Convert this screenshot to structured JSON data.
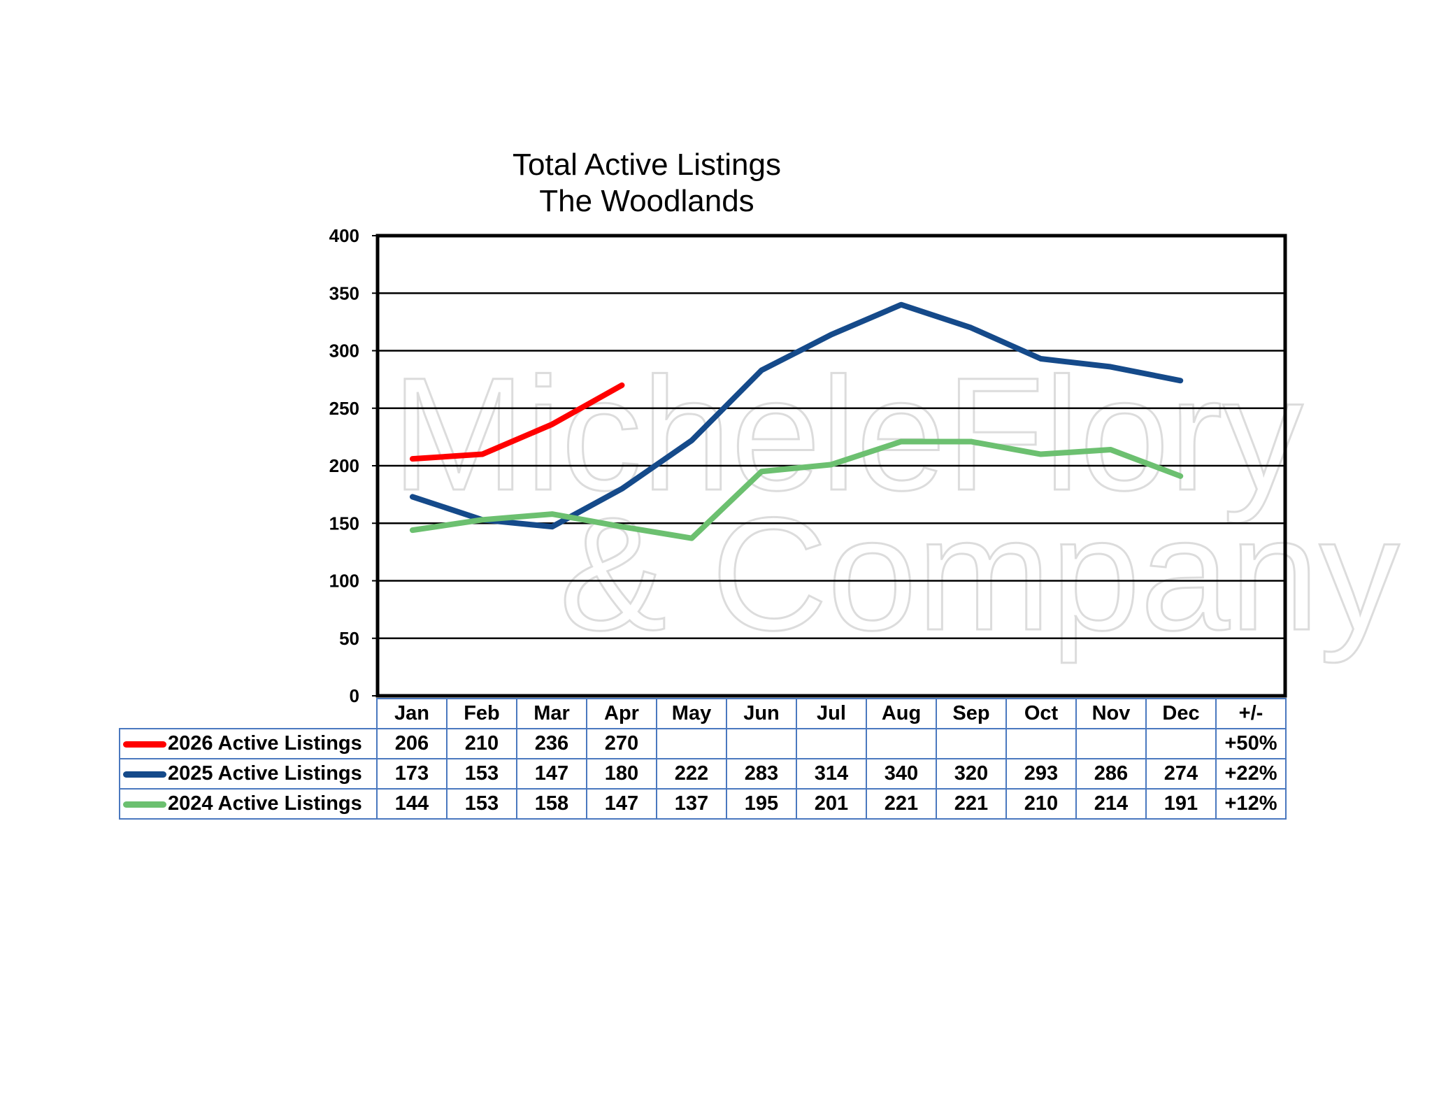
{
  "chart_data": {
    "type": "line",
    "title": "Total Active Listings",
    "subtitle": "The Woodlands",
    "categories": [
      "Jan",
      "Feb",
      "Mar",
      "Apr",
      "May",
      "Jun",
      "Jul",
      "Aug",
      "Sep",
      "Oct",
      "Nov",
      "Dec"
    ],
    "change_header": "+/-",
    "ylim": [
      0,
      400
    ],
    "yticks": [
      0,
      50,
      100,
      150,
      200,
      250,
      300,
      350,
      400
    ],
    "grid": true,
    "series": [
      {
        "name": "2026 Active Listings",
        "color": "#ff0000",
        "values": [
          206,
          210,
          236,
          270,
          null,
          null,
          null,
          null,
          null,
          null,
          null,
          null
        ],
        "change": "+50%"
      },
      {
        "name": "2025 Active Listings",
        "color": "#154a8a",
        "values": [
          173,
          153,
          147,
          180,
          222,
          283,
          314,
          340,
          320,
          293,
          286,
          274
        ],
        "change": "+22%"
      },
      {
        "name": "2024 Active Listings",
        "color": "#6cc070",
        "values": [
          144,
          153,
          158,
          147,
          137,
          195,
          201,
          221,
          221,
          210,
          214,
          191
        ],
        "change": "+12%"
      }
    ],
    "watermark": "MicheleFlory & Company"
  }
}
